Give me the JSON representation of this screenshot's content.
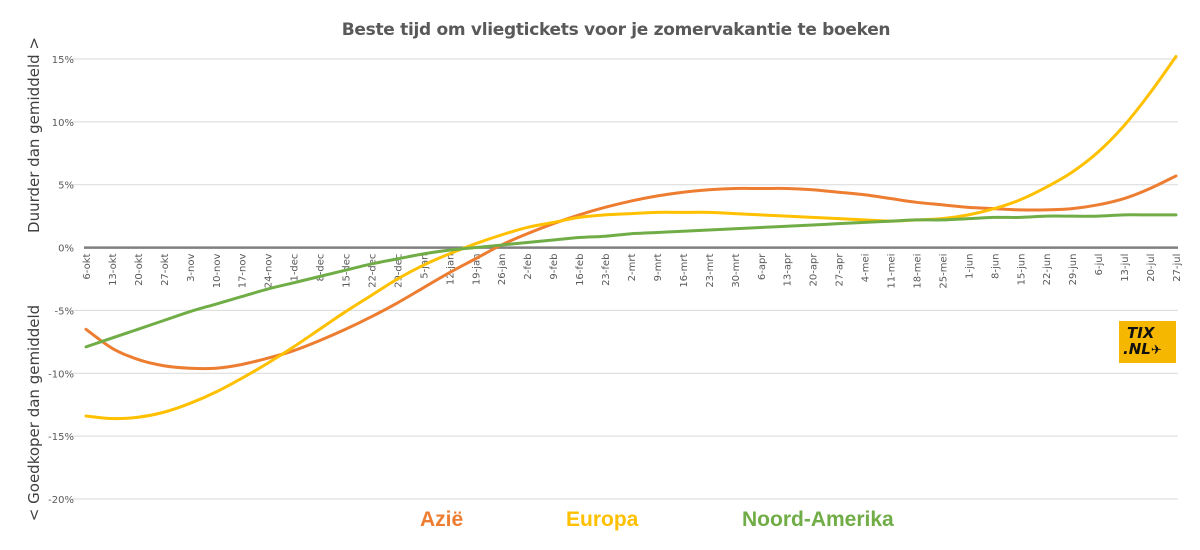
{
  "chart_data": {
    "type": "line",
    "title": "Beste tijd om vliegtickets voor je zomervakantie te boeken",
    "ylabel_top": "Duurder dan gemiddeld >",
    "ylabel_bottom": "< Goedkoper dan gemiddeld",
    "xlabel": "",
    "ylim": [
      -20,
      15
    ],
    "yticks": [
      "15%",
      "10%",
      "5%",
      "0%",
      "-5%",
      "-10%",
      "-15%",
      "-20%"
    ],
    "ytick_values": [
      15,
      10,
      5,
      0,
      -5,
      -10,
      -15,
      -20
    ],
    "grid": true,
    "legend_position": "bottom",
    "categories": [
      "6-okt",
      "13-okt",
      "20-okt",
      "27-okt",
      "3-nov",
      "10-nov",
      "17-nov",
      "24-nov",
      "1-dec",
      "8-dec",
      "15-dec",
      "22-dec",
      "29-dec",
      "5-jan",
      "12-jan",
      "19-jan",
      "26-jan",
      "2-feb",
      "9-feb",
      "16-feb",
      "23-feb",
      "2-mrt",
      "9-mrt",
      "16-mrt",
      "23-mrt",
      "30-mrt",
      "6-apr",
      "13-apr",
      "20-apr",
      "27-apr",
      "4-mei",
      "11-mei",
      "18-mei",
      "25-mei",
      "1-jun",
      "8-jun",
      "15-jun",
      "22-jun",
      "29-jun",
      "6-jul",
      "13-jul",
      "20-jul",
      "27-jul"
    ],
    "series": [
      {
        "name": "Azië",
        "color": "#ed7d31",
        "values": [
          -6.5,
          -8.0,
          -8.9,
          -9.4,
          -9.6,
          -9.6,
          -9.3,
          -8.8,
          -8.2,
          -7.4,
          -6.5,
          -5.5,
          -4.4,
          -3.2,
          -2.0,
          -0.9,
          0.2,
          1.1,
          1.9,
          2.6,
          3.2,
          3.7,
          4.1,
          4.4,
          4.6,
          4.7,
          4.7,
          4.7,
          4.6,
          4.4,
          4.2,
          3.9,
          3.6,
          3.4,
          3.2,
          3.1,
          3.0,
          3.0,
          3.1,
          3.4,
          3.9,
          4.7,
          5.7
        ]
      },
      {
        "name": "Europa",
        "color": "#ffc000",
        "values": [
          -13.4,
          -13.6,
          -13.5,
          -13.1,
          -12.4,
          -11.5,
          -10.4,
          -9.2,
          -7.9,
          -6.5,
          -5.1,
          -3.8,
          -2.5,
          -1.4,
          -0.5,
          0.3,
          1.0,
          1.6,
          2.0,
          2.4,
          2.6,
          2.7,
          2.8,
          2.8,
          2.8,
          2.7,
          2.6,
          2.5,
          2.4,
          2.3,
          2.2,
          2.1,
          2.2,
          2.3,
          2.6,
          3.1,
          3.8,
          4.8,
          6.0,
          7.6,
          9.7,
          12.3,
          15.2
        ]
      },
      {
        "name": "Noord-Amerika",
        "color": "#70ad47",
        "values": [
          -7.9,
          -7.2,
          -6.5,
          -5.8,
          -5.1,
          -4.5,
          -3.9,
          -3.3,
          -2.8,
          -2.3,
          -1.8,
          -1.3,
          -0.9,
          -0.5,
          -0.2,
          0.0,
          0.2,
          0.4,
          0.6,
          0.8,
          0.9,
          1.1,
          1.2,
          1.3,
          1.4,
          1.5,
          1.6,
          1.7,
          1.8,
          1.9,
          2.0,
          2.1,
          2.2,
          2.2,
          2.3,
          2.4,
          2.4,
          2.5,
          2.5,
          2.5,
          2.6,
          2.6,
          2.6
        ]
      }
    ]
  },
  "legend": [
    {
      "label": "Azië",
      "color": "#ed7d31"
    },
    {
      "label": "Europa",
      "color": "#ffc000"
    },
    {
      "label": "Noord-Amerika",
      "color": "#70ad47"
    }
  ],
  "logo": {
    "line1": "TIX",
    "line2": ".NL",
    "icon": "airplane-icon"
  }
}
